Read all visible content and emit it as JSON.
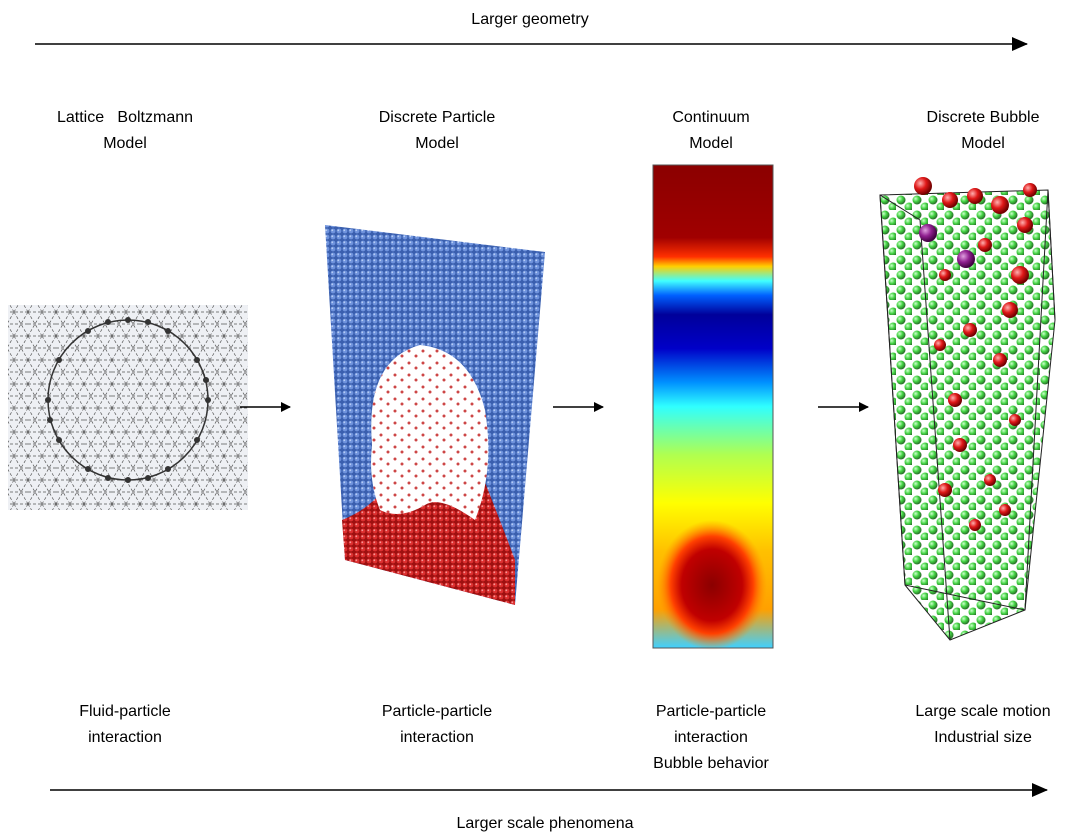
{
  "header": {
    "title": "Larger geometry"
  },
  "columns": [
    {
      "model": [
        "Lattice   Boltzmann",
        "Model"
      ],
      "description": [
        "Fluid-particle",
        "interaction"
      ]
    },
    {
      "model": [
        "Discrete Particle",
        "Model"
      ],
      "description": [
        "Particle-particle",
        "interaction"
      ]
    },
    {
      "model": [
        "Continuum",
        "Model"
      ],
      "description": [
        "Particle-particle",
        "interaction",
        "Bubble behavior"
      ]
    },
    {
      "model": [
        "Discrete Bubble",
        "Model"
      ],
      "description": [
        "Large scale motion",
        "Industrial size"
      ]
    }
  ],
  "footer": {
    "label": "Larger scale phenomena"
  }
}
